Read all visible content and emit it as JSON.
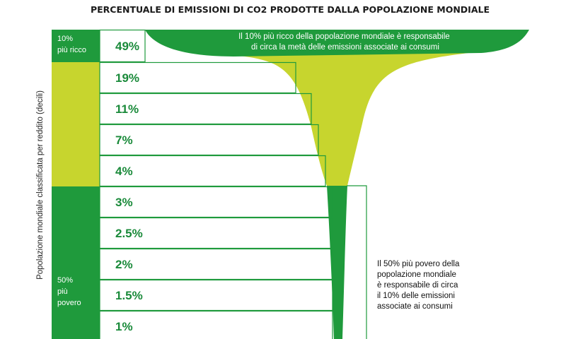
{
  "colors": {
    "dark_green": "#1f9a3c",
    "light_green": "#c7d52e",
    "value_text": "#1a8a3a",
    "row_border": "#1f9a3c"
  },
  "chart_data": {
    "type": "bar",
    "title": "PERCENTUALE DI EMISSIONI DI CO2 PRODOTTE DALLA POPOLAZIONE MONDIALE",
    "ylabel": "Popolazione mondiale classificata per reddito (decili)",
    "values": [
      49,
      19,
      11,
      7,
      4,
      3,
      2.5,
      2,
      1.5,
      1
    ],
    "value_labels": [
      "49%",
      "19%",
      "11%",
      "7%",
      "4%",
      "3%",
      "2.5%",
      "2%",
      "1.5%",
      "1%"
    ],
    "groups": {
      "richest": {
        "label_lines": [
          "10%",
          "più ricco"
        ],
        "color": "dark_green"
      },
      "middle": {
        "color": "light_green"
      },
      "poorest": {
        "label_lines": [
          "50%",
          "più",
          "povero"
        ],
        "color": "dark_green"
      }
    },
    "annotations": {
      "top": [
        "Il 10% più ricco della popolazione mondiale è responsabile",
        "di circa la metà delle emissioni associate ai consumi"
      ],
      "right": [
        "Il 50% più povero della",
        "popolazione mondiale",
        "è responsabile di circa",
        "il 10% delle emissioni",
        "associate ai consumi"
      ]
    }
  }
}
